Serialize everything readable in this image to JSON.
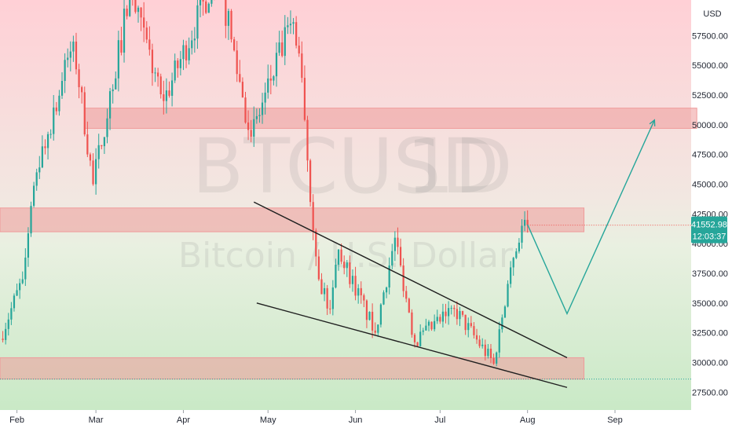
{
  "chart_data": {
    "type": "candlestick",
    "symbol": "BTCUSD",
    "interval": "1D",
    "description": "Bitcoin / U.S. Dollar",
    "currency": "USD",
    "y_range": [
      26000,
      60500
    ],
    "x_range": [
      "2021-01-26",
      "2021-09-28"
    ],
    "y_ticks": [
      "57500.00",
      "55000.00",
      "52500.00",
      "50000.00",
      "47500.00",
      "45000.00",
      "42500.00",
      "40000.00",
      "37500.00",
      "35000.00",
      "32500.00",
      "30000.00",
      "27500.00"
    ],
    "y_tick_values": [
      57500,
      55000,
      52500,
      50000,
      47500,
      45000,
      42500,
      40000,
      37500,
      35000,
      32500,
      30000,
      27500
    ],
    "x_ticks": [
      {
        "label": "Feb",
        "date": "2021-02-01"
      },
      {
        "label": "Mar",
        "date": "2021-03-01"
      },
      {
        "label": "Apr",
        "date": "2021-04-01"
      },
      {
        "label": "May",
        "date": "2021-05-01"
      },
      {
        "label": "Jun",
        "date": "2021-06-01"
      },
      {
        "label": "Jul",
        "date": "2021-07-01"
      },
      {
        "label": "Aug",
        "date": "2021-08-01"
      },
      {
        "label": "Sep",
        "date": "2021-09-01"
      }
    ],
    "last_price": "41552.98",
    "countdown": "12:03:37",
    "last_price_value": 41553,
    "colors": {
      "up": "#26a69a",
      "down": "#ef5350",
      "trendline": "#1f1f1f",
      "projection": "#26a69a",
      "zone": "#ef9a9a",
      "price_tag": "#26a69a"
    },
    "zones": [
      {
        "start": "2021-02-25",
        "end": "2021-09-30",
        "low": 49700,
        "high": 51400
      },
      {
        "start": "2021-01-26",
        "end": "2021-08-21",
        "low": 41000,
        "high": 43000
      },
      {
        "start": "2021-01-26",
        "end": "2021-08-21",
        "low": 28600,
        "high": 30400
      }
    ],
    "price_lines": [
      {
        "value": 41553,
        "color": "#ef5350",
        "start": "2021-08-01"
      },
      {
        "value": 28600,
        "color": "#26a69a",
        "start": "2021-01-26"
      }
    ],
    "trendlines": [
      {
        "from": {
          "date": "2021-04-26",
          "value": 43500
        },
        "to": {
          "date": "2021-08-15",
          "value": 30400
        }
      },
      {
        "from": {
          "date": "2021-04-27",
          "value": 35000
        },
        "to": {
          "date": "2021-08-15",
          "value": 27900
        }
      }
    ],
    "projection": [
      {
        "date": "2021-08-01",
        "value": 41600
      },
      {
        "date": "2021-08-15",
        "value": 34100
      },
      {
        "date": "2021-09-15",
        "value": 50400
      }
    ],
    "anchors": [
      {
        "date": "2021-01-26",
        "value": 32000
      },
      {
        "date": "2021-02-03",
        "value": 37000
      },
      {
        "date": "2021-02-08",
        "value": 46000
      },
      {
        "date": "2021-02-21",
        "value": 57000
      },
      {
        "date": "2021-02-28",
        "value": 45000
      },
      {
        "date": "2021-03-13",
        "value": 61000
      },
      {
        "date": "2021-03-25",
        "value": 52000
      },
      {
        "date": "2021-04-13",
        "value": 63000
      },
      {
        "date": "2021-04-25",
        "value": 49000
      },
      {
        "date": "2021-05-09",
        "value": 58500
      },
      {
        "date": "2021-05-12",
        "value": 56000
      },
      {
        "date": "2021-05-15",
        "value": 47000
      },
      {
        "date": "2021-05-19",
        "value": 37000
      },
      {
        "date": "2021-05-23",
        "value": 34500
      },
      {
        "date": "2021-05-26",
        "value": 39500
      },
      {
        "date": "2021-06-08",
        "value": 32500
      },
      {
        "date": "2021-06-15",
        "value": 40500
      },
      {
        "date": "2021-06-22",
        "value": 31700
      },
      {
        "date": "2021-07-06",
        "value": 34500
      },
      {
        "date": "2021-07-20",
        "value": 29900
      },
      {
        "date": "2021-07-26",
        "value": 38000
      },
      {
        "date": "2021-07-30",
        "value": 41500
      },
      {
        "date": "2021-08-01",
        "value": 41553
      }
    ]
  }
}
